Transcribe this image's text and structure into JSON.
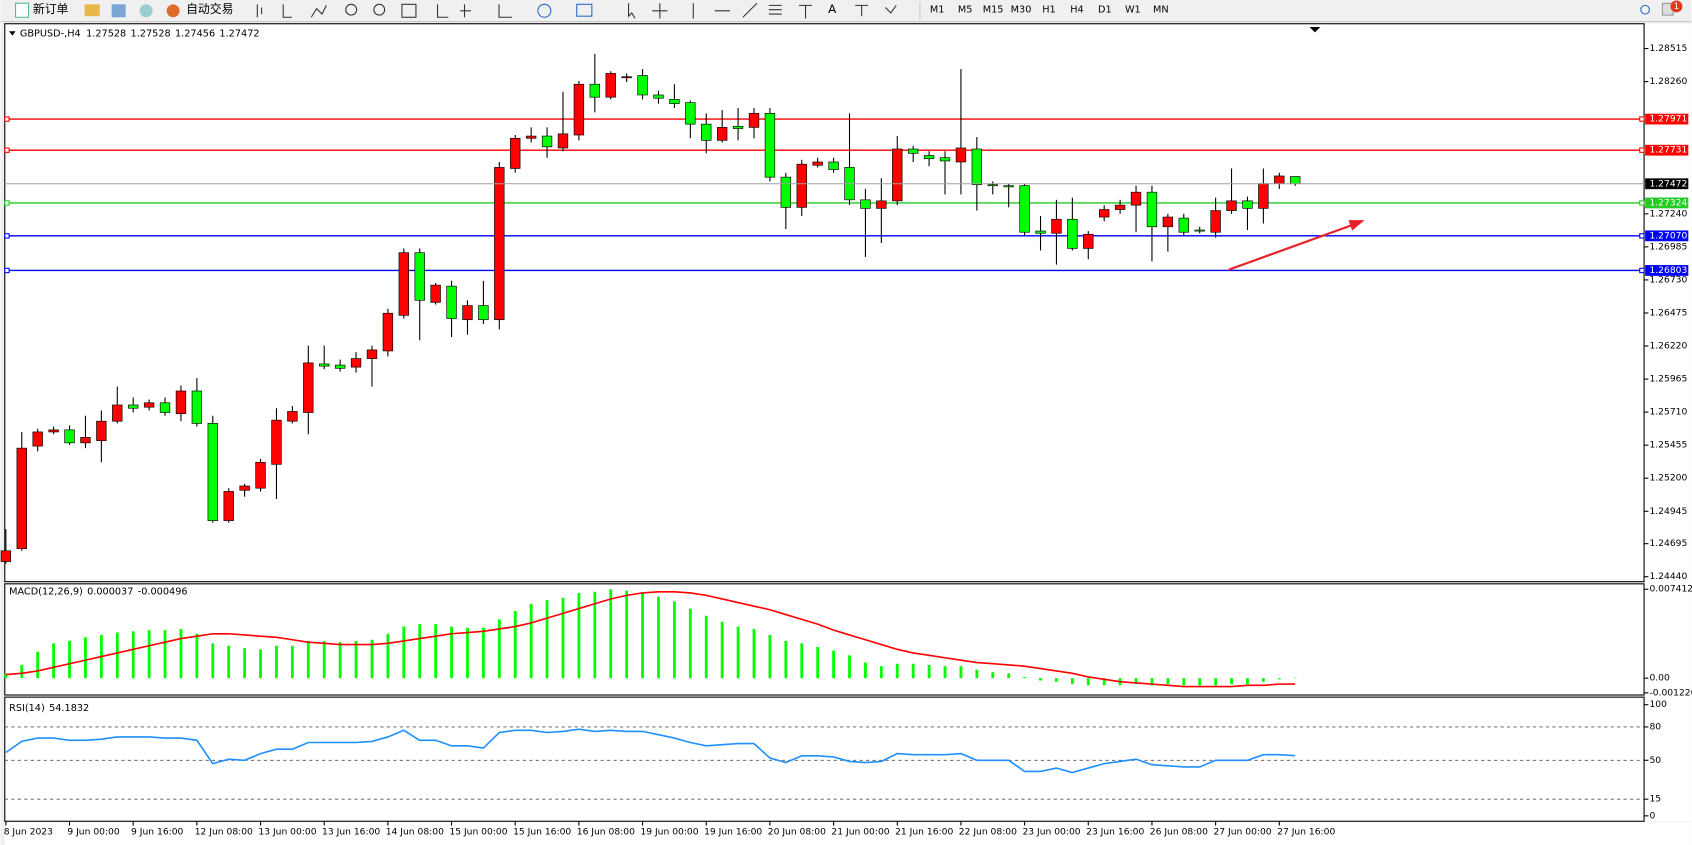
{
  "toolbar": {
    "new_order": "新订单",
    "auto_trading": "自动交易",
    "timeframes": [
      "M1",
      "M5",
      "M15",
      "M30",
      "H1",
      "H4",
      "D1",
      "W1",
      "MN"
    ],
    "notification_count": 1
  },
  "chart_data": [
    {
      "type": "candlestick",
      "title": "GBPUSD-,H4",
      "up_color": "#ff0000",
      "down_color": "#00ff00",
      "last_price_color": "#a0a0a0",
      "categories": [
        "8 Jun 2023",
        null,
        null,
        null,
        "9 Jun 00:00",
        null,
        null,
        null,
        "9 Jun 16:00",
        null,
        null,
        null,
        "12 Jun 08:00",
        null,
        null,
        null,
        "13 Jun 00:00",
        null,
        null,
        null,
        "13 Jun 16:00",
        null,
        null,
        null,
        "14 Jun 08:00",
        null,
        null,
        null,
        "15 Jun 00:00",
        null,
        null,
        null,
        "15 Jun 16:00",
        null,
        null,
        null,
        "16 Jun 08:00",
        null,
        null,
        null,
        "19 Jun 00:00",
        null,
        null,
        null,
        "19 Jun 16:00",
        null,
        null,
        null,
        "20 Jun 08:00",
        null,
        null,
        null,
        "21 Jun 00:00",
        null,
        null,
        null,
        "21 Jun 16:00",
        null,
        null,
        null,
        "22 Jun 08:00",
        null,
        null,
        null,
        "23 Jun 00:00",
        null,
        null,
        null,
        "23 Jun 16:00",
        null,
        null,
        null,
        "26 Jun 08:00",
        null,
        null,
        null,
        "27 Jun 00:00",
        null,
        null,
        null,
        "27 Jun 16:00",
        null
      ],
      "open": [
        1.24557,
        1.24657,
        1.25448,
        1.25557,
        1.25573,
        1.25473,
        1.2549,
        1.2564,
        1.25765,
        1.25748,
        1.25782,
        1.25698,
        1.25873,
        1.25623,
        1.24873,
        1.25107,
        1.25123,
        1.25307,
        1.2564,
        1.25707,
        1.26082,
        1.26073,
        1.26057,
        1.26123,
        1.26182,
        1.26457,
        1.2694,
        1.26557,
        1.26682,
        1.26423,
        1.26532,
        1.26423,
        1.2759,
        1.27823,
        1.2784,
        1.27748,
        1.27848,
        1.2824,
        1.2814,
        1.2829,
        1.28307,
        1.28157,
        1.28123,
        1.28098,
        1.27932,
        1.27807,
        1.27915,
        1.27907,
        1.28015,
        1.27523,
        1.2729,
        1.27615,
        1.2764,
        1.27598,
        1.27348,
        1.27282,
        1.2734,
        1.2774,
        1.2769,
        1.27673,
        1.2764,
        1.2774,
        1.27465,
        1.27457,
        1.27457,
        1.27107,
        1.2709,
        1.27198,
        1.26973,
        1.27215,
        1.27273,
        1.27307,
        1.27407,
        1.2714,
        1.27207,
        1.27115,
        1.27098,
        1.27265,
        1.2734,
        1.27282,
        1.27473,
        1.27528
      ],
      "high": [
        1.24807,
        1.25557,
        1.25582,
        1.25598,
        1.25607,
        1.25682,
        1.25723,
        1.25907,
        1.25823,
        1.25807,
        1.25823,
        1.25915,
        1.25973,
        1.25682,
        1.25123,
        1.25157,
        1.25348,
        1.2574,
        1.25757,
        1.26223,
        1.26223,
        1.26115,
        1.26173,
        1.26223,
        1.26507,
        1.26973,
        1.26973,
        1.26707,
        1.26723,
        1.26573,
        1.26723,
        1.2764,
        1.27848,
        1.27907,
        1.27907,
        1.28182,
        1.28265,
        1.28473,
        1.2834,
        1.28323,
        1.28357,
        1.2819,
        1.2824,
        1.28115,
        1.28015,
        1.2804,
        1.28057,
        1.28057,
        1.28057,
        1.27557,
        1.27657,
        1.27673,
        1.27673,
        1.28015,
        1.27432,
        1.27515,
        1.2784,
        1.27765,
        1.27723,
        1.27723,
        1.28357,
        1.27832,
        1.2749,
        1.27473,
        1.27473,
        1.27223,
        1.27348,
        1.27365,
        1.27107,
        1.27307,
        1.27348,
        1.27457,
        1.27457,
        1.2724,
        1.2724,
        1.2714,
        1.27365,
        1.2759,
        1.27373,
        1.2759,
        1.27557,
        1.27528
      ],
      "low": [
        1.2454,
        1.2464,
        1.25407,
        1.2554,
        1.25457,
        1.25432,
        1.25323,
        1.25623,
        1.25707,
        1.25723,
        1.25682,
        1.2564,
        1.25598,
        1.24857,
        1.24857,
        1.25057,
        1.25098,
        1.2504,
        1.25623,
        1.2554,
        1.2604,
        1.26023,
        1.26015,
        1.25907,
        1.2614,
        1.26432,
        1.26265,
        1.2654,
        1.2629,
        1.26307,
        1.2639,
        1.26348,
        1.27557,
        1.2779,
        1.27673,
        1.27723,
        1.27807,
        1.28023,
        1.28123,
        1.28257,
        1.28123,
        1.2809,
        1.28057,
        1.27823,
        1.27707,
        1.2779,
        1.27807,
        1.27823,
        1.2749,
        1.27123,
        1.27223,
        1.27598,
        1.27557,
        1.27307,
        1.26907,
        1.27015,
        1.27307,
        1.2764,
        1.27607,
        1.2739,
        1.2739,
        1.27265,
        1.2739,
        1.2729,
        1.27073,
        1.26957,
        1.26848,
        1.26957,
        1.2689,
        1.27182,
        1.2724,
        1.27098,
        1.26873,
        1.26948,
        1.27073,
        1.2709,
        1.27057,
        1.2724,
        1.27115,
        1.27165,
        1.27432,
        1.27456
      ],
      "close": [
        1.2464,
        1.25432,
        1.25557,
        1.25573,
        1.25473,
        1.25515,
        1.2564,
        1.25765,
        1.2574,
        1.25782,
        1.25707,
        1.25873,
        1.25623,
        1.24873,
        1.25098,
        1.2514,
        1.25323,
        1.25648,
        1.25715,
        1.2609,
        1.26065,
        1.26048,
        1.26123,
        1.2619,
        1.26473,
        1.2694,
        1.26573,
        1.2669,
        1.26432,
        1.26532,
        1.26423,
        1.27598,
        1.27823,
        1.2784,
        1.27757,
        1.27857,
        1.2824,
        1.2814,
        1.28323,
        1.28298,
        1.28157,
        1.28132,
        1.2809,
        1.27932,
        1.27807,
        1.27907,
        1.27898,
        1.28015,
        1.27523,
        1.2729,
        1.27623,
        1.2764,
        1.27582,
        1.27348,
        1.27282,
        1.2734,
        1.2774,
        1.27707,
        1.27665,
        1.27648,
        1.27748,
        1.27465,
        1.27457,
        1.27448,
        1.27098,
        1.2709,
        1.27198,
        1.26973,
        1.27082,
        1.27273,
        1.27307,
        1.27407,
        1.2714,
        1.27215,
        1.27098,
        1.27107,
        1.27265,
        1.2734,
        1.27282,
        1.27473,
        1.27532,
        1.27472
      ],
      "ylim": [
        1.2441,
        1.2869
      ],
      "yticks": [
        1.28515,
        {
          "value": 1.2826,
          "label": "1.28260"
        },
        {
          "value": 1.2724,
          "label": "1.27240"
        },
        1.26985,
        {
          "value": 1.2673,
          "label": "1.26730"
        },
        1.26475,
        {
          "value": 1.2622,
          "label": "1.26220"
        },
        1.25965,
        {
          "value": 1.2571,
          "label": "1.25710"
        },
        1.25455,
        {
          "value": 1.252,
          "label": "1.25200"
        },
        1.24945,
        1.24695,
        {
          "value": 1.2444,
          "label": "1.24440"
        }
      ],
      "hlines": [
        {
          "value": 1.27971,
          "color": "#ff0000"
        },
        {
          "value": 1.27731,
          "color": "#ff0000"
        },
        {
          "value": 1.27324,
          "color": "#22cc22"
        },
        {
          "value": 1.2707,
          "label": "1.27070",
          "color": "#0000ff"
        },
        {
          "value": 1.26803,
          "color": "#0000ff"
        }
      ]
    },
    {
      "type": "macd",
      "title": "MACD(12,26,9)",
      "hist_color": "#00ff00",
      "signal_color": "#ff0000",
      "values": [
        0.0004,
        0.0011,
        0.0022,
        0.0029,
        0.0031,
        0.0034,
        0.0036,
        0.0038,
        0.0039,
        0.004,
        0.004,
        0.0041,
        0.0037,
        0.0029,
        0.0027,
        0.0025,
        0.0024,
        0.0027,
        0.0027,
        0.0031,
        0.0031,
        0.003,
        0.0031,
        0.0032,
        0.0037,
        0.0043,
        0.0045,
        0.0045,
        0.0043,
        0.0042,
        0.0042,
        0.0049,
        0.0056,
        0.0062,
        0.0065,
        0.0067,
        0.0071,
        0.0072,
        0.007412,
        0.0073,
        0.0071,
        0.0068,
        0.0064,
        0.0058,
        0.0052,
        0.0047,
        0.0043,
        0.0041,
        0.0036,
        0.0031,
        0.0029,
        0.0026,
        0.0023,
        0.0019,
        0.0013,
        0.001,
        0.0012,
        0.0012,
        0.0011,
        0.001,
        0.001,
        0.0007,
        0.0005,
        0.0004,
        0.0001,
        -0.0002,
        -0.0003,
        -0.0005,
        -0.0006,
        -0.0006,
        -0.0006,
        -0.0005,
        -0.0006,
        -0.0005,
        -0.0006,
        -0.0006,
        -0.0006,
        -0.0005,
        -0.0005,
        -0.0003,
        -0.0001,
        3.7e-05
      ],
      "signal": [
        0.0003,
        0.0004,
        0.0006,
        0.0009,
        0.0012,
        0.0015,
        0.0018,
        0.0021,
        0.0024,
        0.0027,
        0.003,
        0.0033,
        0.0035,
        0.0037,
        0.0037,
        0.0036,
        0.0035,
        0.0034,
        0.0032,
        0.003,
        0.0029,
        0.0028,
        0.0028,
        0.0028,
        0.0029,
        0.0031,
        0.0033,
        0.0035,
        0.0037,
        0.0038,
        0.0039,
        0.0041,
        0.0043,
        0.0046,
        0.005,
        0.0054,
        0.0058,
        0.0062,
        0.0066,
        0.0069,
        0.0071,
        0.0072,
        0.0072,
        0.0071,
        0.0069,
        0.0066,
        0.0063,
        0.006,
        0.0057,
        0.0053,
        0.0049,
        0.0045,
        0.004,
        0.0036,
        0.0032,
        0.0028,
        0.0024,
        0.0021,
        0.0019,
        0.0017,
        0.0015,
        0.0013,
        0.0012,
        0.0011,
        0.001,
        0.0008,
        0.0006,
        0.0004,
        0.0001,
        -0.0001,
        -0.0003,
        -0.0004,
        -0.0005,
        -0.0006,
        -0.0007,
        -0.0007,
        -0.0007,
        -0.0007,
        -0.0006,
        -0.0006,
        -0.0005,
        -0.000496
      ],
      "ylim": [
        -0.001226,
        0.007412
      ],
      "yticks": [
        0.007412,
        {
          "value": 0,
          "label": "0.00"
        },
        -0.001226
      ]
    },
    {
      "type": "line",
      "title": "RSI(14)",
      "color": "#1e90ff",
      "values": [
        57,
        67,
        70,
        70,
        68,
        68,
        69,
        71,
        71,
        71,
        70,
        70,
        68,
        47,
        51,
        50,
        56,
        60,
        60,
        66,
        66,
        66,
        66,
        67,
        71,
        77,
        68,
        68,
        63,
        63,
        61,
        75,
        77,
        77,
        75,
        76,
        78,
        76,
        77,
        76,
        76,
        73,
        70,
        66,
        63,
        64,
        65,
        65,
        52,
        48,
        54,
        54,
        53,
        49,
        48,
        49,
        56,
        55,
        55,
        55,
        56,
        50,
        50,
        50,
        40,
        40,
        43,
        39,
        43,
        47,
        49,
        51,
        46,
        45,
        44,
        44,
        50,
        50,
        50,
        55,
        55,
        54.1832
      ],
      "ylim": [
        0,
        100
      ],
      "yticks": [
        100,
        80,
        50,
        15,
        0
      ],
      "levels": [
        80,
        50,
        15
      ]
    }
  ]
}
